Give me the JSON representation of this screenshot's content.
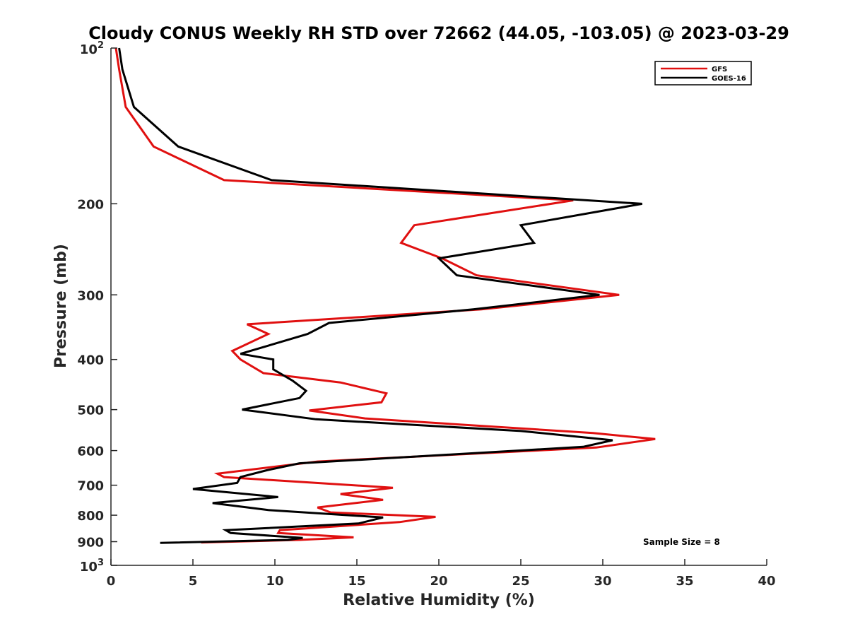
{
  "chart_data": {
    "type": "line",
    "title": "Cloudy CONUS Weekly RH STD over 72662 (44.05, -103.05) @ 2023-03-29",
    "xlabel": "Relative Humidity (%)",
    "ylabel": "Pressure (mb)",
    "xlim": [
      0,
      40
    ],
    "ylim": [
      100,
      1000
    ],
    "y_scale": "log",
    "y_reversed": true,
    "grid": false,
    "legend_position": "top-right",
    "x_ticks": [
      0,
      5,
      10,
      15,
      20,
      25,
      30,
      35,
      40
    ],
    "y_ticks": [
      {
        "value": 100,
        "base": "10",
        "exp": "2"
      },
      {
        "value": 200,
        "label": "200"
      },
      {
        "value": 300,
        "label": "300"
      },
      {
        "value": 400,
        "label": "400"
      },
      {
        "value": 500,
        "label": "500"
      },
      {
        "value": 600,
        "label": "600"
      },
      {
        "value": 700,
        "label": "700"
      },
      {
        "value": 800,
        "label": "800"
      },
      {
        "value": 900,
        "label": "900"
      },
      {
        "value": 1000,
        "base": "10",
        "exp": "3"
      }
    ],
    "series": [
      {
        "name": "GFS",
        "color": "#e01010",
        "points": [
          [
            0.3,
            100
          ],
          [
            0.5,
            110
          ],
          [
            0.9,
            130
          ],
          [
            2.6,
            155
          ],
          [
            6.9,
            180
          ],
          [
            28.2,
            197
          ],
          [
            18.5,
            220
          ],
          [
            17.7,
            238
          ],
          [
            20.2,
            255
          ],
          [
            22.3,
            275
          ],
          [
            31.0,
            300
          ],
          [
            22.6,
            320
          ],
          [
            8.3,
            342
          ],
          [
            9.6,
            357
          ],
          [
            7.4,
            385
          ],
          [
            7.9,
            400
          ],
          [
            9.3,
            425
          ],
          [
            14.0,
            443
          ],
          [
            16.8,
            465
          ],
          [
            16.5,
            484
          ],
          [
            12.1,
            502
          ],
          [
            15.5,
            520
          ],
          [
            29.4,
            555
          ],
          [
            33.2,
            570
          ],
          [
            29.6,
            592
          ],
          [
            12.6,
            630
          ],
          [
            6.5,
            665
          ],
          [
            6.9,
            675
          ],
          [
            17.2,
            708
          ],
          [
            14.0,
            728
          ],
          [
            16.6,
            747
          ],
          [
            12.6,
            773
          ],
          [
            13.4,
            790
          ],
          [
            19.8,
            806
          ],
          [
            17.6,
            825
          ],
          [
            10.3,
            855
          ],
          [
            10.2,
            866
          ],
          [
            14.8,
            883
          ],
          [
            11.5,
            893
          ],
          [
            5.5,
            903
          ]
        ]
      },
      {
        "name": "GOES-16",
        "color": "#000000",
        "points": [
          [
            0.5,
            100
          ],
          [
            0.7,
            110
          ],
          [
            1.4,
            130
          ],
          [
            4.1,
            155
          ],
          [
            9.8,
            180
          ],
          [
            32.4,
            200
          ],
          [
            25.0,
            220
          ],
          [
            25.8,
            238
          ],
          [
            20.0,
            255
          ],
          [
            21.1,
            275
          ],
          [
            29.8,
            300
          ],
          [
            22.1,
            320
          ],
          [
            13.3,
            340
          ],
          [
            12.0,
            357
          ],
          [
            7.9,
            390
          ],
          [
            9.9,
            400
          ],
          [
            9.9,
            418
          ],
          [
            11.1,
            440
          ],
          [
            11.9,
            460
          ],
          [
            11.5,
            475
          ],
          [
            8.0,
            500
          ],
          [
            12.5,
            522
          ],
          [
            25.0,
            550
          ],
          [
            30.6,
            573
          ],
          [
            28.8,
            590
          ],
          [
            11.5,
            635
          ],
          [
            9.5,
            655
          ],
          [
            7.9,
            675
          ],
          [
            7.7,
            693
          ],
          [
            5.0,
            712
          ],
          [
            10.2,
            738
          ],
          [
            6.2,
            758
          ],
          [
            9.6,
            782
          ],
          [
            16.6,
            808
          ],
          [
            15.1,
            830
          ],
          [
            7.0,
            855
          ],
          [
            7.3,
            866
          ],
          [
            11.7,
            885
          ],
          [
            10.8,
            893
          ],
          [
            3.0,
            905
          ]
        ]
      }
    ],
    "annotation": "Sample Size = 8"
  }
}
